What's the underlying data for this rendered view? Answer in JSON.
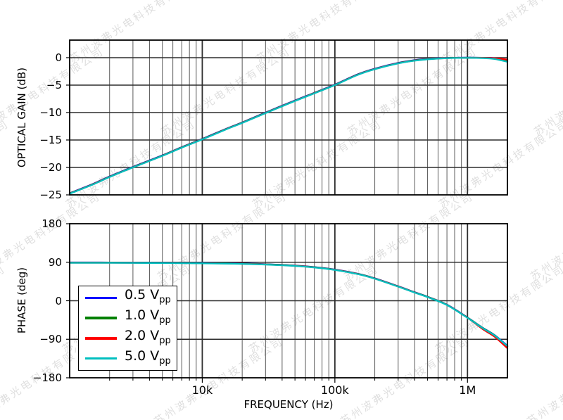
{
  "watermark": {
    "text": "苏州波弗光电科技有限公司",
    "color": "#000000",
    "opacity": 0.13
  },
  "colors": {
    "background": "#ffffff",
    "spine": "#000000",
    "grid_major": "#2d2d2d",
    "grid_minor": "#5a5a5a",
    "series_blue": "#0000ff",
    "series_green": "#008000",
    "series_red": "#ff0000",
    "series_cyan": "#00bfbf"
  },
  "legend": {
    "items": [
      {
        "label": "0.5 V",
        "sub": "pp",
        "color": "#0000ff"
      },
      {
        "label": "1.0 V",
        "sub": "pp",
        "color": "#008000"
      },
      {
        "label": "2.0 V",
        "sub": "pp",
        "color": "#ff0000"
      },
      {
        "label": "5.0 V",
        "sub": "pp",
        "color": "#00bfbf"
      }
    ]
  },
  "chart_data": [
    {
      "type": "line",
      "id": "gain",
      "ylabel": "OPTICAL GAIN (dB)",
      "xscale": "log",
      "xlim": [
        1000,
        2000000
      ],
      "ylim": [
        -25,
        3.2
      ],
      "grid": true,
      "yticks": {
        "values": [
          0,
          -5,
          -10,
          -15,
          -20,
          -25
        ],
        "labels": [
          "0",
          "−5",
          "−10",
          "−15",
          "−20",
          "−25"
        ]
      },
      "xticks": {
        "values": [
          10000,
          100000,
          1000000
        ],
        "labels": [
          "10k",
          "100k",
          "1M"
        ]
      },
      "x": [
        1000,
        1500,
        2000,
        3000,
        5000,
        7000,
        10000,
        15000,
        20000,
        30000,
        50000,
        70000,
        100000,
        150000,
        200000,
        300000,
        400000,
        500000,
        700000,
        1000000,
        1300000,
        1600000,
        2000000
      ],
      "series": [
        {
          "name": "0.5 Vpp",
          "color": "#0000ff",
          "values": [
            -24.7,
            -23.0,
            -21.65,
            -19.9,
            -17.8,
            -16.3,
            -14.8,
            -13.0,
            -11.8,
            -10.0,
            -7.8,
            -6.4,
            -4.9,
            -3.0,
            -2.0,
            -0.95,
            -0.45,
            -0.22,
            -0.05,
            0.0,
            -0.02,
            -0.1,
            -0.65
          ]
        },
        {
          "name": "1.0 Vpp",
          "color": "#008000",
          "values": [
            -24.74,
            -23.04,
            -21.69,
            -19.94,
            -17.84,
            -16.34,
            -14.84,
            -13.04,
            -11.84,
            -10.04,
            -7.84,
            -6.44,
            -4.94,
            -3.04,
            -2.05,
            -0.99,
            -0.49,
            -0.25,
            -0.07,
            -0.01,
            -0.03,
            -0.13,
            -0.55
          ]
        },
        {
          "name": "2.0 Vpp",
          "color": "#ff0000",
          "values": [
            -24.77,
            -23.07,
            -21.72,
            -19.97,
            -17.87,
            -16.37,
            -14.87,
            -13.07,
            -11.87,
            -10.07,
            -7.87,
            -6.47,
            -4.97,
            -3.07,
            -2.07,
            -1.02,
            -0.52,
            -0.27,
            -0.08,
            -0.02,
            -0.03,
            -0.1,
            -0.35
          ]
        },
        {
          "name": "5.0 Vpp",
          "color": "#00bfbf",
          "values": [
            -24.8,
            -23.1,
            -21.75,
            -20.0,
            -17.9,
            -16.4,
            -14.9,
            -13.1,
            -11.9,
            -10.1,
            -7.9,
            -6.5,
            -5.0,
            -3.1,
            -2.1,
            -1.05,
            -0.55,
            -0.3,
            -0.1,
            -0.04,
            -0.08,
            -0.25,
            -0.75
          ]
        }
      ]
    },
    {
      "type": "line",
      "id": "phase",
      "ylabel": "PHASE (deg)",
      "xlabel": "FREQUENCY (Hz)",
      "xscale": "log",
      "xlim": [
        1000,
        2000000
      ],
      "ylim": [
        -180,
        180
      ],
      "grid": true,
      "yticks": {
        "values": [
          180,
          90,
          0,
          -90,
          -180
        ],
        "labels": [
          "180",
          "90",
          "0",
          "−90",
          "−180"
        ]
      },
      "xticks": {
        "values": [
          10000,
          100000,
          1000000
        ],
        "labels": [
          "10k",
          "100k",
          "1M"
        ]
      },
      "x": [
        1000,
        1500,
        2000,
        3000,
        5000,
        7000,
        10000,
        15000,
        20000,
        30000,
        50000,
        70000,
        100000,
        150000,
        200000,
        300000,
        400000,
        500000,
        700000,
        1000000,
        1300000,
        1600000,
        2000000
      ],
      "series": [
        {
          "name": "0.5 Vpp",
          "color": "#0000ff",
          "values": [
            89.5,
            89.5,
            89.4,
            89.3,
            89.0,
            88.7,
            88.3,
            87.7,
            87.0,
            85.5,
            82.3,
            78.7,
            72.9,
            62.9,
            52.4,
            33.9,
            19.9,
            9.4,
            -9.1,
            -39.1,
            -63.1,
            -80.2,
            -105.2
          ]
        },
        {
          "name": "1.0 Vpp",
          "color": "#008000",
          "values": [
            89.2,
            89.2,
            89.1,
            89.0,
            88.7,
            88.4,
            88.0,
            87.4,
            86.7,
            85.2,
            82.0,
            78.4,
            72.6,
            62.6,
            52.1,
            33.6,
            19.6,
            9.1,
            -9.4,
            -39.4,
            -63.4,
            -80.6,
            -107.0
          ]
        },
        {
          "name": "2.0 Vpp",
          "color": "#ff0000",
          "values": [
            88.9,
            88.9,
            88.8,
            88.7,
            88.4,
            88.1,
            87.7,
            87.1,
            86.4,
            84.9,
            81.7,
            78.1,
            72.3,
            62.3,
            51.8,
            33.3,
            19.3,
            8.8,
            -9.7,
            -39.7,
            -66.0,
            -84.0,
            -111.0
          ]
        },
        {
          "name": "5.0 Vpp",
          "color": "#00bfbf",
          "values": [
            88.6,
            88.6,
            88.5,
            88.4,
            88.1,
            87.8,
            87.4,
            86.8,
            86.1,
            84.6,
            81.4,
            77.8,
            72.0,
            62.0,
            51.5,
            33.0,
            19.0,
            8.5,
            -10.0,
            -40.0,
            -64.0,
            -81.0,
            -106.0
          ]
        }
      ]
    }
  ]
}
